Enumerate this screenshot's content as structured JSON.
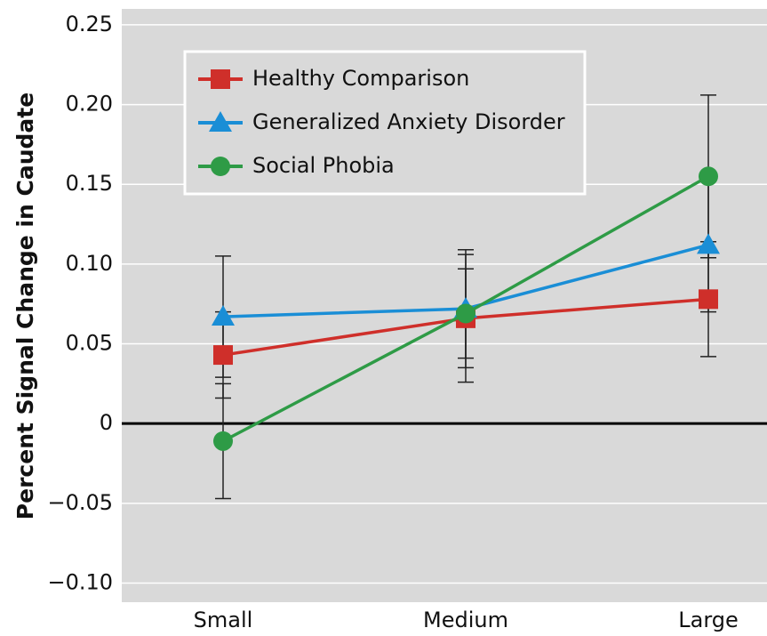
{
  "chart_data": {
    "type": "line",
    "y_label": "Percent Signal Change in Caudate",
    "categories": [
      "Small",
      "Medium",
      "Large"
    ],
    "series": [
      {
        "name": "Healthy Comparison",
        "color": "#cf2f2a",
        "marker": "square",
        "values": [
          0.043,
          0.066,
          0.078
        ],
        "errors": [
          0.027,
          0.04,
          0.036
        ]
      },
      {
        "name": "Generalized Anxiety Disorder",
        "color": "#1a8ed6",
        "marker": "triangle",
        "values": [
          0.067,
          0.072,
          0.112
        ],
        "errors": [
          0.038,
          0.037,
          0.042
        ]
      },
      {
        "name": "Social Phobia",
        "color": "#2e9b46",
        "marker": "circle",
        "values": [
          -0.011,
          0.069,
          0.155
        ],
        "errors": [
          0.036,
          0.028,
          0.051
        ]
      }
    ],
    "ylim": [
      -0.112,
      0.26
    ],
    "yticks": [
      {
        "value": -0.1,
        "label": "−0.10"
      },
      {
        "value": -0.05,
        "label": "−0.05"
      },
      0,
      0.05,
      {
        "value": 0.1,
        "label": "0.10"
      },
      0.15,
      {
        "value": 0.2,
        "label": "0.20"
      },
      0.25
    ],
    "grid": true,
    "zero_line": true,
    "legend": "upper left"
  }
}
